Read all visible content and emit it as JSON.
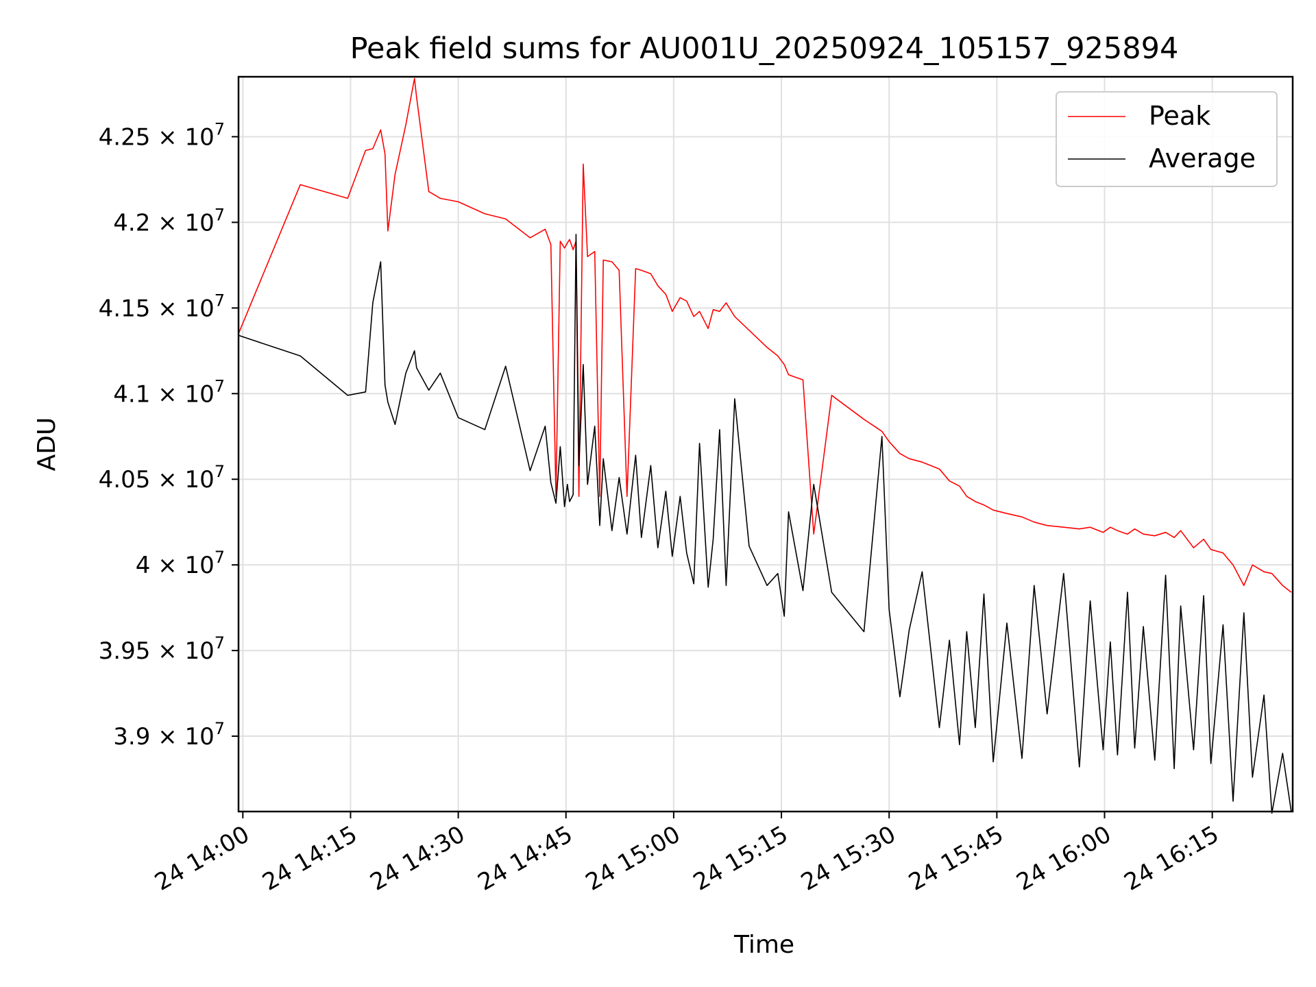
{
  "chart_data": {
    "type": "line",
    "title": "Peak field sums for AU001U_20250924_105157_925894",
    "xlabel": "Time",
    "ylabel": "ADU",
    "grid": true,
    "legend_position": "top-right",
    "x_unit": "minutes since 24 14:00",
    "xlim": [
      -0.6,
      146.2
    ],
    "ylim": [
      38560000,
      42850000
    ],
    "x_ticks": [
      {
        "value": 0,
        "label": "24 14:00"
      },
      {
        "value": 15,
        "label": "24 14:15"
      },
      {
        "value": 30,
        "label": "24 14:30"
      },
      {
        "value": 45,
        "label": "24 14:45"
      },
      {
        "value": 60,
        "label": "24 15:00"
      },
      {
        "value": 75,
        "label": "24 15:15"
      },
      {
        "value": 90,
        "label": "24 15:30"
      },
      {
        "value": 105,
        "label": "24 15:45"
      },
      {
        "value": 120,
        "label": "24 16:00"
      },
      {
        "value": 135,
        "label": "24 16:15"
      }
    ],
    "y_ticks": [
      {
        "value": 39000000,
        "mantissa": "3.9",
        "base": "10",
        "exponent": "7"
      },
      {
        "value": 39500000,
        "mantissa": "3.95",
        "base": "10",
        "exponent": "7"
      },
      {
        "value": 40000000,
        "mantissa": "4",
        "base": "10",
        "exponent": "7"
      },
      {
        "value": 40500000,
        "mantissa": "4.05",
        "base": "10",
        "exponent": "7"
      },
      {
        "value": 41000000,
        "mantissa": "4.1",
        "base": "10",
        "exponent": "7"
      },
      {
        "value": 41500000,
        "mantissa": "4.15",
        "base": "10",
        "exponent": "7"
      },
      {
        "value": 42000000,
        "mantissa": "4.2",
        "base": "10",
        "exponent": "7"
      },
      {
        "value": 42500000,
        "mantissa": "4.25",
        "base": "10",
        "exponent": "7"
      }
    ],
    "series": [
      {
        "name": "Peak",
        "color": "#ff0000",
        "x": [
          -0.6,
          8.0,
          14.6,
          17.1,
          18.1,
          19.2,
          19.8,
          20.2,
          21.2,
          22.7,
          23.9,
          24.2,
          25.9,
          27.5,
          30.0,
          33.7,
          36.6,
          40.0,
          42.1,
          42.9,
          43.6,
          44.2,
          44.8,
          45.2,
          45.5,
          46.0,
          46.4,
          46.8,
          47.4,
          48.0,
          49.0,
          49.7,
          50.2,
          51.4,
          52.4,
          53.5,
          54.7,
          55.5,
          56.8,
          57.8,
          58.9,
          59.8,
          60.9,
          61.8,
          62.8,
          63.6,
          64.8,
          65.5,
          66.4,
          67.3,
          68.5,
          70.5,
          73.0,
          74.5,
          75.4,
          76.0,
          78.0,
          79.5,
          82.0,
          86.5,
          89.0,
          90.0,
          91.5,
          92.8,
          94.6,
          97.0,
          98.4,
          99.8,
          100.8,
          102.0,
          103.2,
          104.5,
          106.4,
          108.5,
          110.2,
          112.0,
          114.3,
          116.5,
          118.0,
          119.8,
          120.8,
          121.8,
          123.2,
          124.2,
          125.4,
          127.0,
          128.5,
          129.7,
          130.6,
          132.4,
          133.8,
          134.8,
          136.5,
          137.9,
          139.4,
          140.6,
          142.2,
          143.3,
          144.8,
          146.0
        ],
        "values": [
          41350000,
          42220000,
          42140000,
          42420000,
          42430000,
          42540000,
          42400000,
          41950000,
          42280000,
          42570000,
          42840000,
          42730000,
          42180000,
          42140000,
          42120000,
          42050000,
          42020000,
          41910000,
          41960000,
          41870000,
          40400000,
          41890000,
          41850000,
          41880000,
          41900000,
          41840000,
          41890000,
          40400000,
          42340000,
          41800000,
          41830000,
          40400000,
          41780000,
          41770000,
          41720000,
          40400000,
          41730000,
          41720000,
          41700000,
          41630000,
          41580000,
          41480000,
          41560000,
          41540000,
          41450000,
          41480000,
          41380000,
          41490000,
          41480000,
          41530000,
          41450000,
          41370000,
          41270000,
          41220000,
          41170000,
          41110000,
          41080000,
          40180000,
          40990000,
          40850000,
          40780000,
          40720000,
          40650000,
          40620000,
          40600000,
          40560000,
          40490000,
          40460000,
          40400000,
          40370000,
          40350000,
          40320000,
          40300000,
          40280000,
          40250000,
          40230000,
          40220000,
          40210000,
          40220000,
          40190000,
          40220000,
          40200000,
          40180000,
          40210000,
          40180000,
          40170000,
          40190000,
          40160000,
          40200000,
          40100000,
          40150000,
          40090000,
          40070000,
          40000000,
          39880000,
          40000000,
          39960000,
          39950000,
          39880000,
          39840000
        ]
      },
      {
        "name": "Average",
        "color": "#000000",
        "x": [
          -0.6,
          8.0,
          14.6,
          17.1,
          18.1,
          19.2,
          19.8,
          20.2,
          21.2,
          22.7,
          23.9,
          24.2,
          25.9,
          27.5,
          30.0,
          33.7,
          36.6,
          40.0,
          42.1,
          42.9,
          43.6,
          44.2,
          44.8,
          45.2,
          45.5,
          46.0,
          46.4,
          46.8,
          47.4,
          48.0,
          49.0,
          49.7,
          50.2,
          51.4,
          52.4,
          53.5,
          54.7,
          55.5,
          56.8,
          57.8,
          58.9,
          59.8,
          60.9,
          61.8,
          62.8,
          63.6,
          64.8,
          65.5,
          66.4,
          67.3,
          68.5,
          70.5,
          73.0,
          74.5,
          75.4,
          76.0,
          78.0,
          79.5,
          82.0,
          86.5,
          89.0,
          90.0,
          91.5,
          92.8,
          94.6,
          97.0,
          98.4,
          99.8,
          100.8,
          102.0,
          103.2,
          104.5,
          106.4,
          108.5,
          110.2,
          112.0,
          114.3,
          116.5,
          118.0,
          119.8,
          120.8,
          121.8,
          123.2,
          124.2,
          125.4,
          127.0,
          128.5,
          129.7,
          130.6,
          132.4,
          133.8,
          134.8,
          136.5,
          137.9,
          139.4,
          140.6,
          142.2,
          143.3,
          144.8,
          146.0
        ],
        "values": [
          41340000,
          41220000,
          40990000,
          41010000,
          41530000,
          41770000,
          41050000,
          40950000,
          40820000,
          41120000,
          41250000,
          41150000,
          41020000,
          41120000,
          40860000,
          40790000,
          41160000,
          40550000,
          40810000,
          40480000,
          40360000,
          40690000,
          40340000,
          40470000,
          40370000,
          40410000,
          41930000,
          40580000,
          41170000,
          40470000,
          40810000,
          40230000,
          40620000,
          40200000,
          40510000,
          40180000,
          40640000,
          40160000,
          40580000,
          40100000,
          40430000,
          40050000,
          40400000,
          40070000,
          39890000,
          40710000,
          39870000,
          40150000,
          40790000,
          39880000,
          40970000,
          40110000,
          39880000,
          39950000,
          39700000,
          40310000,
          39850000,
          40470000,
          39840000,
          39610000,
          40750000,
          39740000,
          39230000,
          39620000,
          39960000,
          39050000,
          39560000,
          38950000,
          39610000,
          39050000,
          39830000,
          38850000,
          39660000,
          38870000,
          39880000,
          39130000,
          39950000,
          38820000,
          39790000,
          38920000,
          39550000,
          38890000,
          39840000,
          38930000,
          39640000,
          38860000,
          39940000,
          38810000,
          39760000,
          38920000,
          39820000,
          38840000,
          39650000,
          38620000,
          39720000,
          38760000,
          39240000,
          38550000,
          38900000,
          38560000
        ]
      }
    ]
  }
}
